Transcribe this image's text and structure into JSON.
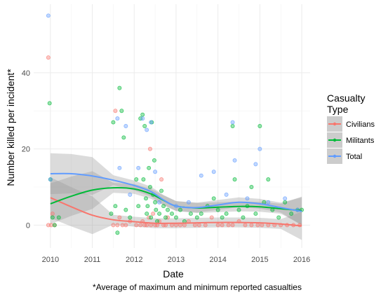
{
  "chart_data": {
    "type": "scatter",
    "xlabel": "Date",
    "ylabel": "Number killed per incident*",
    "caption": "*Average of maximum and minimum reported casualties",
    "xlim": [
      2009.6,
      2016.2
    ],
    "ylim": [
      -6,
      58
    ],
    "x_ticks": [
      2010,
      2011,
      2012,
      2013,
      2014,
      2015,
      2016
    ],
    "y_ticks": [
      0,
      20,
      40
    ],
    "grid": true,
    "legend": {
      "title_lines": [
        "Casualty",
        "Type"
      ],
      "placement": "right",
      "entries": [
        {
          "label": "Civilians",
          "color": "#F8766D"
        },
        {
          "label": "Militants",
          "color": "#00BA38"
        },
        {
          "label": "Total",
          "color": "#619CFF"
        }
      ]
    },
    "series": [
      {
        "name": "Civilians",
        "color": "#F8766D",
        "points": [
          [
            2009.95,
            44
          ],
          [
            2009.95,
            0
          ],
          [
            2010.02,
            0
          ],
          [
            2010.05,
            3
          ],
          [
            2010.1,
            0
          ],
          [
            2011.55,
            30
          ],
          [
            2011.5,
            0
          ],
          [
            2011.6,
            0
          ],
          [
            2011.65,
            2
          ],
          [
            2011.72,
            0
          ],
          [
            2011.8,
            0
          ],
          [
            2011.9,
            1
          ],
          [
            2012.05,
            0
          ],
          [
            2012.15,
            0
          ],
          [
            2012.2,
            1
          ],
          [
            2012.25,
            0
          ],
          [
            2012.3,
            0
          ],
          [
            2012.35,
            2
          ],
          [
            2012.38,
            20
          ],
          [
            2012.4,
            0
          ],
          [
            2012.45,
            3
          ],
          [
            2012.5,
            0
          ],
          [
            2012.55,
            0
          ],
          [
            2012.6,
            1
          ],
          [
            2012.65,
            12
          ],
          [
            2012.7,
            0
          ],
          [
            2012.75,
            0
          ],
          [
            2012.8,
            2
          ],
          [
            2012.9,
            0
          ],
          [
            2013.0,
            0
          ],
          [
            2013.1,
            0
          ],
          [
            2013.2,
            0
          ],
          [
            2013.3,
            1
          ],
          [
            2013.45,
            0
          ],
          [
            2013.55,
            0
          ],
          [
            2013.7,
            0
          ],
          [
            2013.85,
            2
          ],
          [
            2014.0,
            0
          ],
          [
            2014.1,
            0
          ],
          [
            2014.25,
            0
          ],
          [
            2014.35,
            0
          ],
          [
            2014.5,
            1
          ],
          [
            2014.65,
            0
          ],
          [
            2014.8,
            0
          ],
          [
            2014.95,
            0
          ],
          [
            2015.05,
            0
          ],
          [
            2015.2,
            0
          ],
          [
            2015.35,
            0
          ],
          [
            2015.5,
            0
          ],
          [
            2015.65,
            0
          ],
          [
            2015.8,
            0
          ],
          [
            2015.95,
            0
          ]
        ],
        "trend": [
          [
            2010.0,
            7.2
          ],
          [
            2010.5,
            4.8
          ],
          [
            2011.0,
            2.6
          ],
          [
            2011.5,
            1.4
          ],
          [
            2012.0,
            0.9
          ],
          [
            2012.5,
            0.5
          ],
          [
            2013.0,
            0.5
          ],
          [
            2013.5,
            0.6
          ],
          [
            2014.0,
            0.7
          ],
          [
            2014.5,
            0.7
          ],
          [
            2015.0,
            0.6
          ],
          [
            2015.5,
            0.3
          ],
          [
            2016.0,
            -0.2
          ]
        ]
      },
      {
        "name": "Militants",
        "color": "#00BA38",
        "points": [
          [
            2009.98,
            32
          ],
          [
            2010.0,
            12
          ],
          [
            2010.05,
            2
          ],
          [
            2010.1,
            0
          ],
          [
            2010.2,
            2
          ],
          [
            2011.45,
            3
          ],
          [
            2011.5,
            27
          ],
          [
            2011.55,
            5
          ],
          [
            2011.6,
            -2
          ],
          [
            2011.65,
            36
          ],
          [
            2011.7,
            30
          ],
          [
            2011.75,
            23
          ],
          [
            2011.8,
            4
          ],
          [
            2011.9,
            2
          ],
          [
            2012.05,
            12
          ],
          [
            2012.1,
            5
          ],
          [
            2012.15,
            28
          ],
          [
            2012.2,
            29
          ],
          [
            2012.22,
            12
          ],
          [
            2012.25,
            26
          ],
          [
            2012.28,
            7
          ],
          [
            2012.3,
            3
          ],
          [
            2012.32,
            5
          ],
          [
            2012.35,
            15
          ],
          [
            2012.38,
            10
          ],
          [
            2012.4,
            2
          ],
          [
            2012.42,
            27
          ],
          [
            2012.45,
            8
          ],
          [
            2012.48,
            17
          ],
          [
            2012.5,
            6
          ],
          [
            2012.52,
            4
          ],
          [
            2012.55,
            1
          ],
          [
            2012.6,
            3
          ],
          [
            2012.65,
            9
          ],
          [
            2012.7,
            5
          ],
          [
            2012.75,
            2
          ],
          [
            2012.8,
            4
          ],
          [
            2012.9,
            3
          ],
          [
            2013.0,
            2
          ],
          [
            2013.1,
            4
          ],
          [
            2013.2,
            1
          ],
          [
            2013.35,
            3
          ],
          [
            2013.5,
            2
          ],
          [
            2013.6,
            3
          ],
          [
            2013.75,
            5
          ],
          [
            2013.9,
            7
          ],
          [
            2014.0,
            4
          ],
          [
            2014.1,
            2
          ],
          [
            2014.2,
            3
          ],
          [
            2014.35,
            26
          ],
          [
            2014.4,
            12
          ],
          [
            2014.5,
            4
          ],
          [
            2014.6,
            2
          ],
          [
            2014.7,
            5
          ],
          [
            2014.8,
            10
          ],
          [
            2014.9,
            3
          ],
          [
            2015.0,
            26
          ],
          [
            2015.1,
            6
          ],
          [
            2015.2,
            12
          ],
          [
            2015.3,
            4
          ],
          [
            2015.45,
            2
          ],
          [
            2015.6,
            6
          ],
          [
            2015.75,
            3
          ],
          [
            2015.9,
            4
          ],
          [
            2016.0,
            4
          ]
        ],
        "trend": [
          [
            2010.0,
            5.6
          ],
          [
            2010.5,
            7.6
          ],
          [
            2011.0,
            9.2
          ],
          [
            2011.5,
            9.8
          ],
          [
            2012.0,
            9.5
          ],
          [
            2012.4,
            8.2
          ],
          [
            2012.7,
            6.5
          ],
          [
            2013.0,
            5.0
          ],
          [
            2013.5,
            4.5
          ],
          [
            2014.0,
            4.7
          ],
          [
            2014.5,
            4.9
          ],
          [
            2015.0,
            4.8
          ],
          [
            2015.5,
            4.3
          ],
          [
            2016.0,
            3.8
          ]
        ]
      },
      {
        "name": "Total",
        "color": "#619CFF",
        "points": [
          [
            2009.95,
            55
          ],
          [
            2010.0,
            12
          ],
          [
            2011.6,
            28
          ],
          [
            2011.65,
            15
          ],
          [
            2011.8,
            26
          ],
          [
            2011.9,
            8
          ],
          [
            2012.1,
            15
          ],
          [
            2012.2,
            28
          ],
          [
            2012.3,
            25
          ],
          [
            2012.4,
            27
          ],
          [
            2012.5,
            14
          ],
          [
            2012.6,
            6
          ],
          [
            2013.0,
            5
          ],
          [
            2013.3,
            6
          ],
          [
            2013.6,
            13
          ],
          [
            2013.9,
            14
          ],
          [
            2014.2,
            8
          ],
          [
            2014.35,
            27
          ],
          [
            2014.4,
            17
          ],
          [
            2014.7,
            7
          ],
          [
            2014.9,
            16
          ],
          [
            2015.0,
            20
          ],
          [
            2015.2,
            6
          ],
          [
            2015.6,
            7
          ],
          [
            2015.9,
            4
          ]
        ],
        "trend": [
          [
            2010.0,
            13.5
          ],
          [
            2010.5,
            13.5
          ],
          [
            2011.0,
            12.9
          ],
          [
            2011.5,
            11.8
          ],
          [
            2012.0,
            10.4
          ],
          [
            2012.4,
            8.8
          ],
          [
            2012.7,
            6.6
          ],
          [
            2013.0,
            5.0
          ],
          [
            2013.5,
            4.6
          ],
          [
            2014.0,
            5.3
          ],
          [
            2014.5,
            6.0
          ],
          [
            2015.0,
            5.6
          ],
          [
            2015.5,
            4.6
          ],
          [
            2016.0,
            3.6
          ]
        ]
      }
    ]
  }
}
